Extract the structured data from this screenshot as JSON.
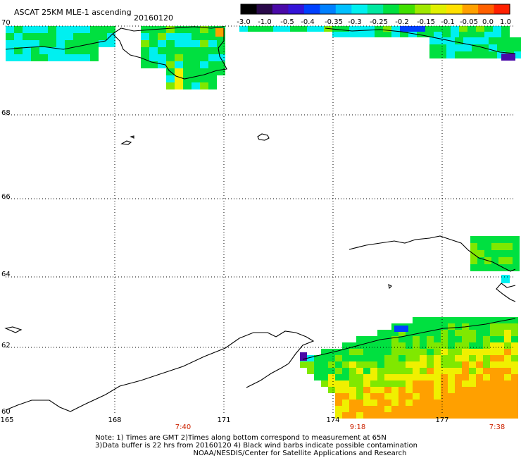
{
  "title": "ASCAT 25KM MLE-1 ascending",
  "date": "20160120",
  "colorbar": {
    "labels": [
      "-3.0",
      "-1.0",
      "-0.5",
      "-0.4",
      "-0.35",
      "-0.3",
      "-0.25",
      "-0.2",
      "-0.15",
      "-0.1",
      "-0.05",
      "0.0",
      "1.0"
    ],
    "colors": [
      "#000000",
      "#2a0a4a",
      "#4a0aa8",
      "#3414d8",
      "#0040ff",
      "#0080ff",
      "#00c0ff",
      "#00f0f0",
      "#00e8a0",
      "#00e040",
      "#40e000",
      "#a0e800",
      "#e0f000",
      "#ffe000",
      "#ffa000",
      "#ff6000",
      "#ff2000"
    ]
  },
  "map": {
    "lat_labels": [
      "70",
      "68",
      "66",
      "64",
      "62",
      "60"
    ],
    "lon_labels": [
      "165",
      "168",
      "171",
      "174",
      "177"
    ],
    "time_labels": [
      "7:40",
      "9:18",
      "7:38"
    ]
  },
  "notes": {
    "line1": "Note: 1) Times are GMT 2)Times along bottom correspond to measurement at 65N",
    "line2": "3)Data buffer is 22 hrs from 20160120 4) Black wind barbs indicate possible contamination",
    "line3": "NOAA/NESDIS/Center for Satellite Applications and Research"
  },
  "palette": {
    "cyan": "#00f0f0",
    "green": "#00e040",
    "lime": "#80e800",
    "yellow": "#f0f000",
    "orange": "#ffa000",
    "blue": "#0040ff",
    "purple": "#4a0aa8"
  }
}
